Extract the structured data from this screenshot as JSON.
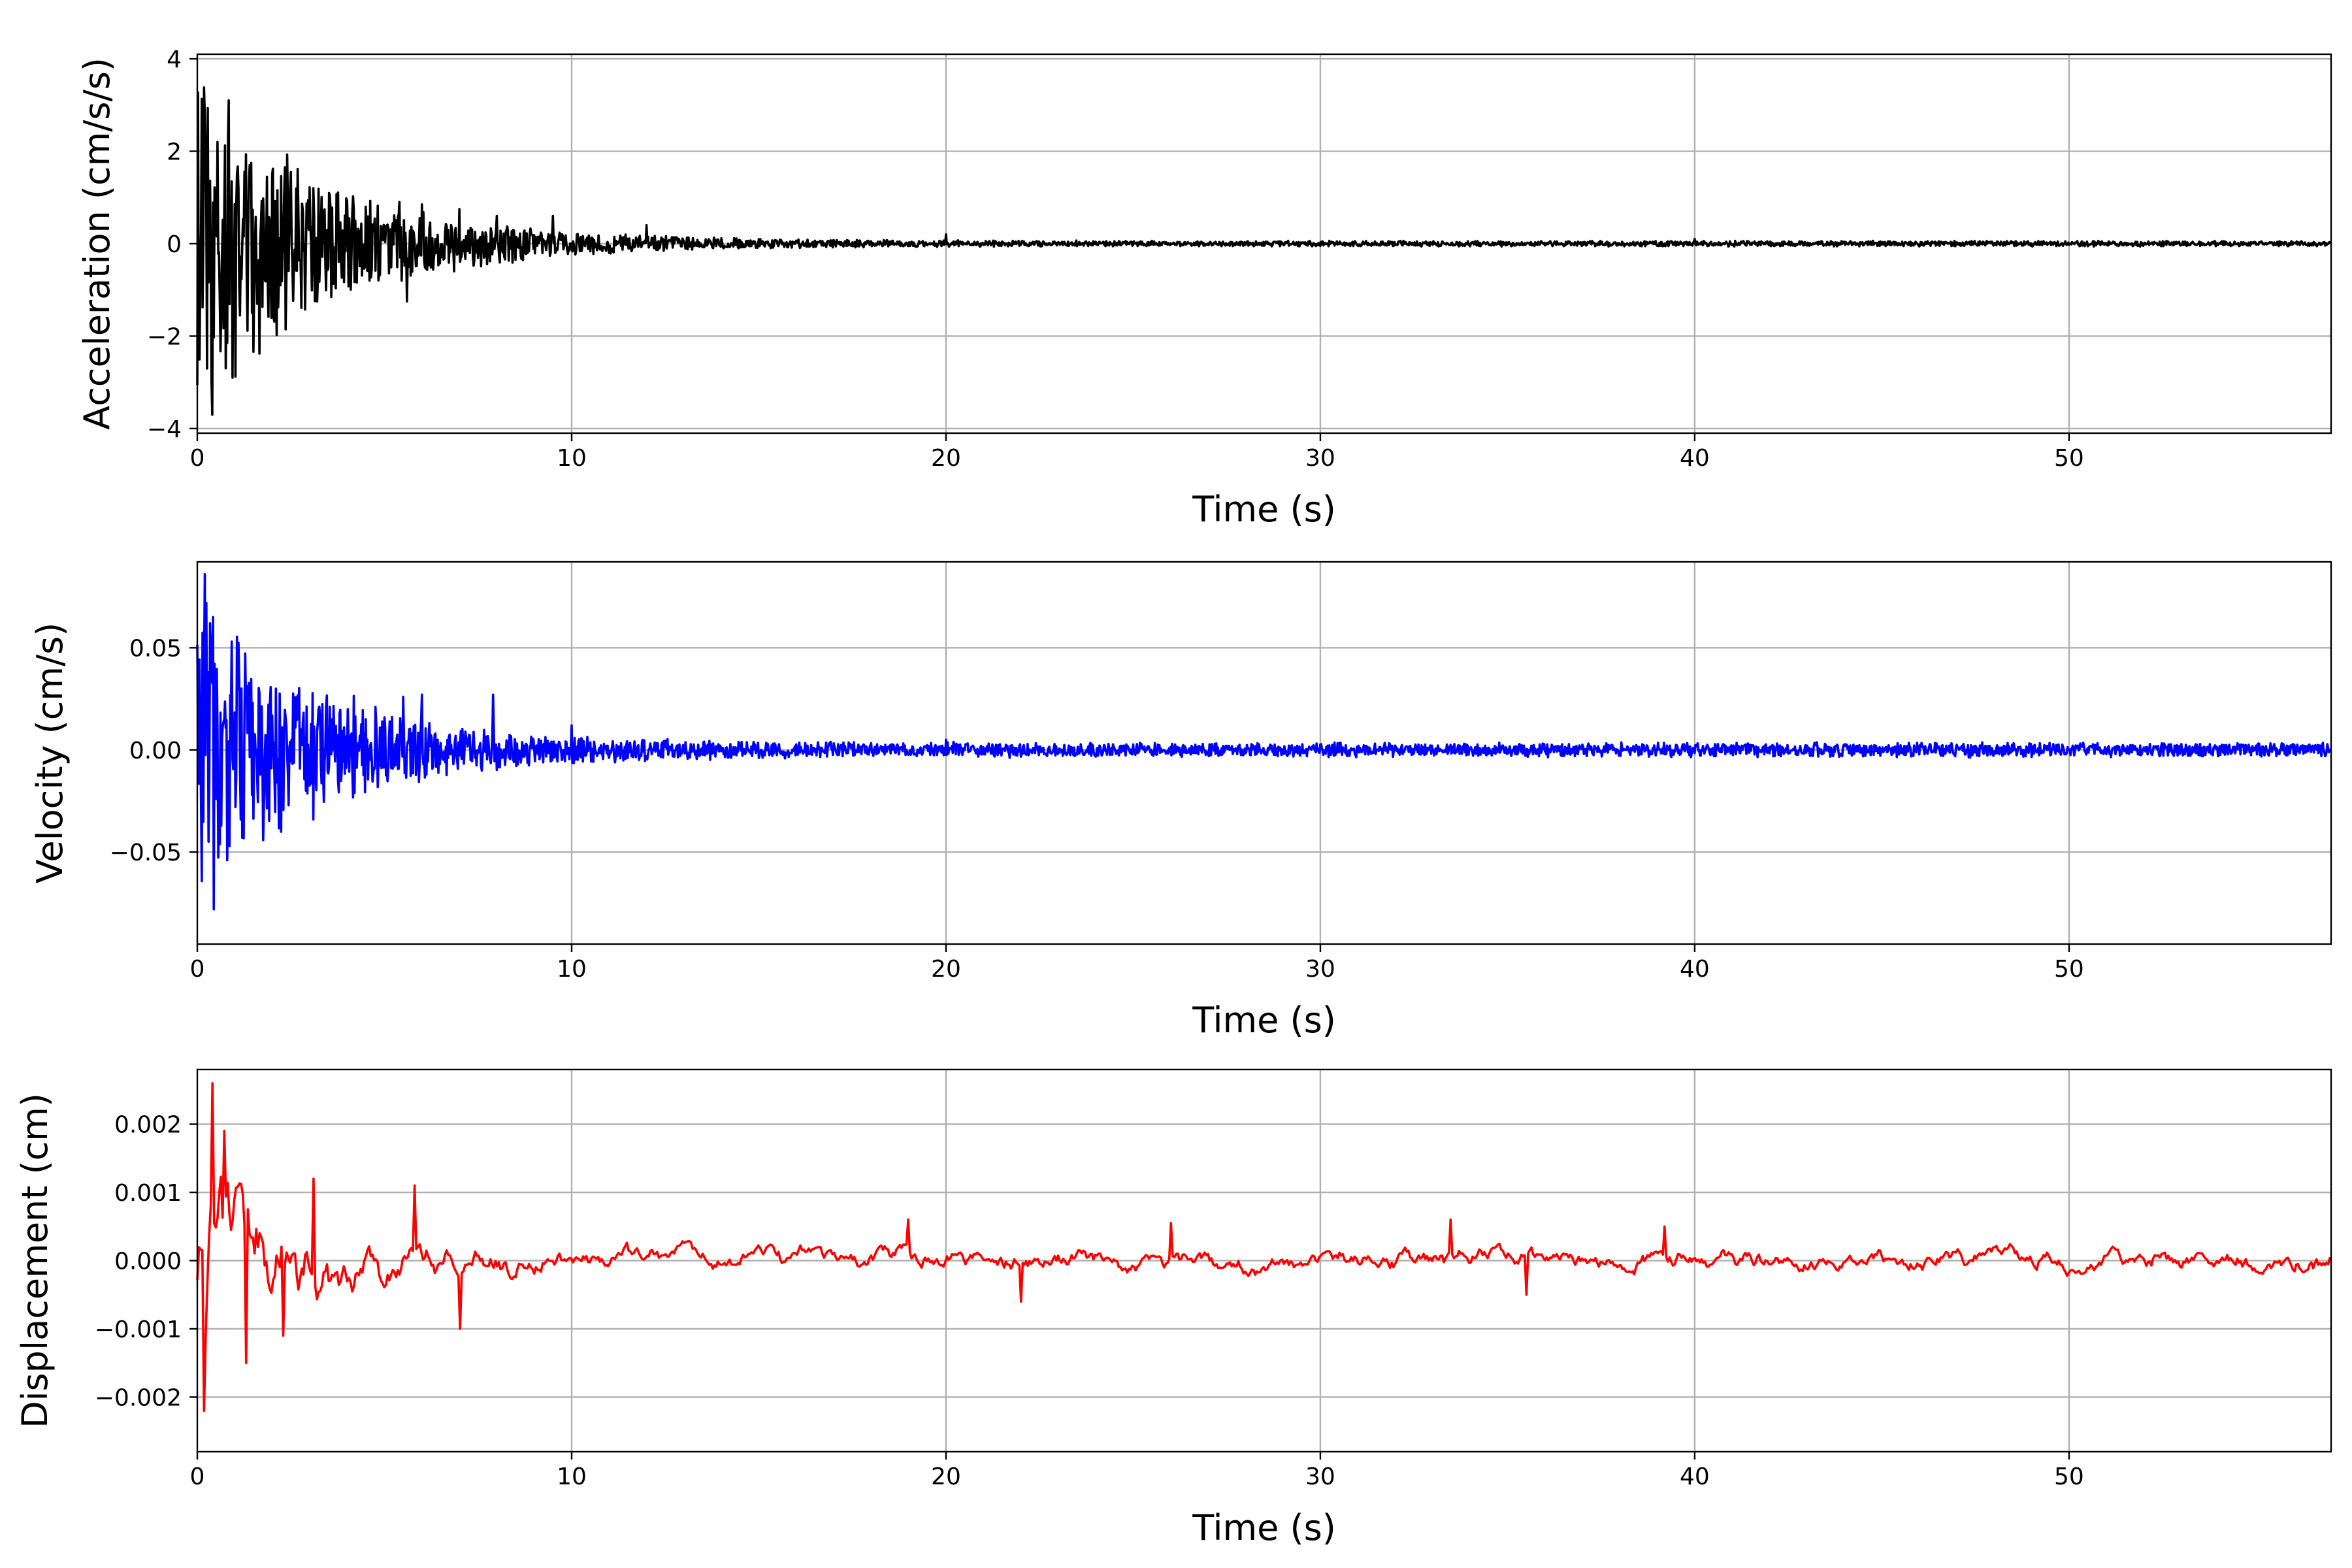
{
  "chart_data": [
    {
      "type": "line",
      "title": "",
      "xlabel": "Time (s)",
      "ylabel": "Acceleration (cm/s/s)",
      "xlim": [
        0,
        57
      ],
      "ylim": [
        -4.1,
        4.1
      ],
      "xticks": [
        0,
        10,
        20,
        30,
        40,
        50
      ],
      "xtick_labels": [
        "0",
        "10",
        "20",
        "30",
        "40",
        "50"
      ],
      "yticks": [
        -4,
        -2,
        0,
        2,
        4
      ],
      "ytick_labels": [
        "−4",
        "−2",
        "0",
        "2",
        "4"
      ],
      "grid": true,
      "color": "#000000",
      "envelope": {
        "peak": 3.7,
        "decay_s": 3.5,
        "floor": 0.06
      },
      "series": [
        {
          "name": "",
          "values": [
            [
              0.2,
              2.75
            ],
            [
              0.25,
              -2.7
            ],
            [
              0.4,
              -3.7
            ],
            [
              0.55,
              2.2
            ],
            [
              0.65,
              -1.4
            ],
            [
              0.85,
              3.1
            ],
            [
              0.95,
              -2.9
            ],
            [
              1.1,
              1.2
            ],
            [
              1.4,
              1.7
            ],
            [
              1.6,
              -1.3
            ],
            [
              2.0,
              1.5
            ],
            [
              2.5,
              1.55
            ],
            [
              3.1,
              1.2
            ],
            [
              3.2,
              -1.25
            ],
            [
              4.5,
              0.8
            ],
            [
              5.4,
              0.9
            ],
            [
              5.6,
              -1.25
            ],
            [
              6.0,
              0.85
            ],
            [
              7.0,
              0.75
            ],
            [
              8.0,
              0.6
            ],
            [
              8.5,
              -0.35
            ],
            [
              9.5,
              0.6
            ],
            [
              12.0,
              0.4
            ],
            [
              20.0,
              0.2
            ],
            [
              40.0,
              0.1
            ],
            [
              57.0,
              0.0
            ]
          ]
        }
      ]
    },
    {
      "type": "line",
      "title": "",
      "xlabel": "Time (s)",
      "ylabel": "Velocity (cm/s)",
      "xlim": [
        0,
        57
      ],
      "ylim": [
        -0.095,
        0.092
      ],
      "xticks": [
        0,
        10,
        20,
        30,
        40,
        50
      ],
      "xtick_labels": [
        "0",
        "10",
        "20",
        "30",
        "40",
        "50"
      ],
      "yticks": [
        -0.05,
        0.0,
        0.05
      ],
      "ytick_labels": [
        "−0.05",
        "0.00",
        "0.05"
      ],
      "grid": true,
      "color": "#0000ff",
      "envelope": {
        "peak": 0.078,
        "decay_s": 3.2,
        "floor": 0.0035
      },
      "series": [
        {
          "name": "",
          "values": [
            [
              0.2,
              0.086
            ],
            [
              0.45,
              -0.078
            ],
            [
              0.35,
              0.062
            ],
            [
              0.8,
              -0.054
            ],
            [
              1.2,
              -0.043
            ],
            [
              2.1,
              0.03
            ],
            [
              3.1,
              0.03
            ],
            [
              3.1,
              -0.034
            ],
            [
              5.5,
              0.026
            ],
            [
              6.0,
              0.027
            ],
            [
              7.9,
              0.027
            ],
            [
              10.0,
              0.012
            ],
            [
              20.0,
              0.005
            ],
            [
              57.0,
              0.0
            ]
          ]
        }
      ]
    },
    {
      "type": "line",
      "title": "",
      "xlabel": "Time (s)",
      "ylabel": "Displacement (cm)",
      "xlim": [
        0,
        57
      ],
      "ylim": [
        -0.0028,
        0.0028
      ],
      "xticks": [
        0,
        10,
        20,
        30,
        40,
        50
      ],
      "xtick_labels": [
        "0",
        "10",
        "20",
        "30",
        "40",
        "50"
      ],
      "yticks": [
        -0.002,
        -0.001,
        0.0,
        0.001,
        0.002
      ],
      "ytick_labels": [
        "−0.002",
        "−0.001",
        "0.000",
        "0.001",
        "0.002"
      ],
      "grid": true,
      "color": "#ff0000",
      "envelope": {
        "peak": 0.0022,
        "decay_s": 2.5,
        "floor": 0.00028
      },
      "series": [
        {
          "name": "",
          "values": [
            [
              0.2,
              -0.0022
            ],
            [
              0.4,
              0.0026
            ],
            [
              0.7,
              0.0019
            ],
            [
              1.3,
              -0.0015
            ],
            [
              2.3,
              -0.0011
            ],
            [
              3.1,
              0.0012
            ],
            [
              5.8,
              0.0011
            ],
            [
              7.0,
              -0.001
            ],
            [
              19.0,
              0.0006
            ],
            [
              22.0,
              -0.0006
            ],
            [
              26.0,
              0.00055
            ],
            [
              33.5,
              0.0006
            ],
            [
              35.5,
              -0.0005
            ],
            [
              39.2,
              0.0005
            ],
            [
              57.0,
              5e-05
            ]
          ]
        }
      ]
    }
  ]
}
